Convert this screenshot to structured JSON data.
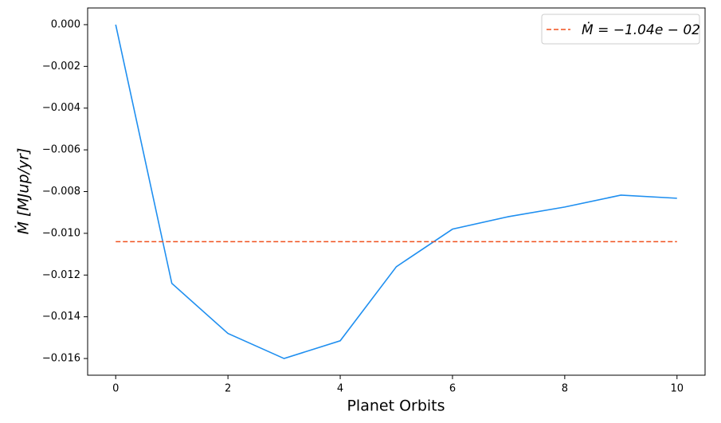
{
  "chart_data": {
    "type": "line",
    "xlabel": "Planet Orbits",
    "ylabel": "Ṁ [MJup/yr]",
    "x": [
      0,
      1,
      2,
      3,
      4,
      5,
      6,
      7,
      8,
      9,
      10
    ],
    "series": [
      {
        "name": null,
        "color": "#1f8ff0",
        "values": [
          0,
          -0.0124,
          -0.0148,
          -0.016,
          -0.01515,
          -0.0116,
          -0.0098,
          -0.0092,
          -0.00874,
          -0.00817,
          -0.00832
        ]
      }
    ],
    "mean_line": {
      "name": "Ṁ = −1.04e − 02",
      "value": -0.0104,
      "color": "#f0501e",
      "dash": true
    },
    "xlim": [
      -0.5,
      10.5
    ],
    "ylim": [
      -0.0168,
      0.0008
    ],
    "xticks": [
      0,
      2,
      4,
      6,
      8,
      10
    ],
    "yticks": [
      {
        "value": 0,
        "label": "0.000"
      },
      {
        "value": -0.002,
        "label": "−0.002"
      },
      {
        "value": -0.004,
        "label": "−0.004"
      },
      {
        "value": -0.006,
        "label": "−0.006"
      },
      {
        "value": -0.008,
        "label": "−0.008"
      },
      {
        "value": -0.01,
        "label": "−0.010"
      },
      {
        "value": -0.012,
        "label": "−0.012"
      },
      {
        "value": -0.014,
        "label": "−0.014"
      },
      {
        "value": -0.016,
        "label": "−0.016"
      }
    ],
    "legend": "upper right"
  }
}
